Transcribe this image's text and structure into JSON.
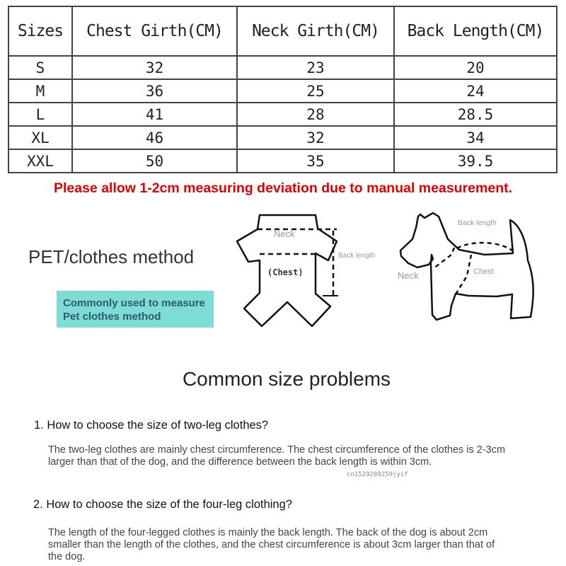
{
  "size_table": {
    "headers": [
      "Sizes",
      "Chest Girth(CM)",
      "Neck Girth(CM)",
      "Back Length(CM)"
    ],
    "rows": [
      [
        "S",
        "32",
        "23",
        "20"
      ],
      [
        "M",
        "36",
        "25",
        "24"
      ],
      [
        "L",
        "41",
        "28",
        "28.5"
      ],
      [
        "XL",
        "46",
        "32",
        "34"
      ],
      [
        "XXL",
        "50",
        "35",
        "39.5"
      ]
    ]
  },
  "notice": "Please allow 1-2cm measuring deviation due to manual measurement.",
  "notice_color": "#e00000",
  "method": {
    "title": "PET/clothes method",
    "badge_line1": "Commonly used to measure",
    "badge_line2": "Pet clothes method",
    "badge_color": "#7ddcd3"
  },
  "clothes_diagram": {
    "neck": "Neck",
    "chest": "(Chest)",
    "back_length": "Back length"
  },
  "dog_diagram": {
    "back_length": "Back length",
    "neck": "Neck",
    "chest": "Chest"
  },
  "faq": {
    "title": "Common size problems",
    "items": [
      {
        "question": "1. How to choose the size of two-leg clothes?",
        "answer": "The two-leg clothes are mainly chest circumference. The chest circumference of the clothes is 2-3cm larger than that of the dog, and the difference between the back length is within 3cm."
      },
      {
        "question": "2. How to choose the size of the four-leg clothing?",
        "answer": "The length of the four-legged clothes is mainly the back length. The back of the dog is about 2cm smaller than the length of the clothes, and the chest circumference is about 3cm larger than that of the dog."
      }
    ],
    "watermark": "cn1529289259jyif"
  }
}
